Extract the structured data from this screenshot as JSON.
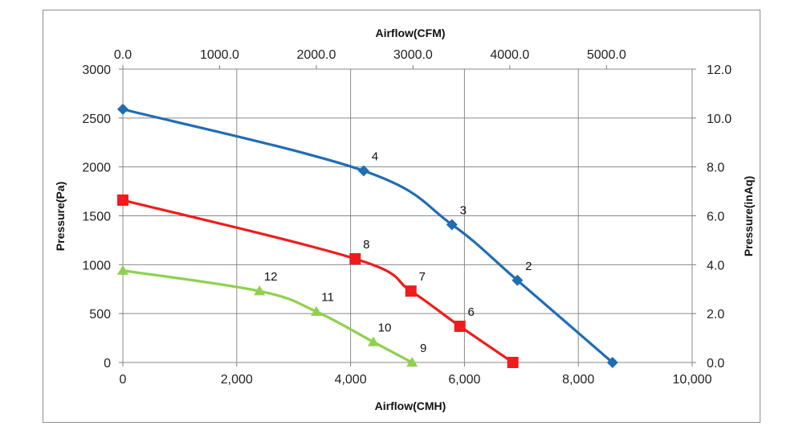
{
  "chart_data": {
    "type": "line",
    "title": "",
    "xlabel_bottom": "Airflow(CMH)",
    "xlabel_top": "Airflow(CFM)",
    "ylabel_left": "Pressure(Pa)",
    "ylabel_right": "Pressure(inAq)",
    "xlim": [
      0,
      10000
    ],
    "ylim": [
      0,
      3000
    ],
    "x2lim": [
      0,
      5885.9
    ],
    "y2lim": [
      0,
      12.0
    ],
    "grid": true,
    "x_ticks": [
      {
        "value": 0,
        "label": "0"
      },
      {
        "value": 2000,
        "label": "2,000"
      },
      {
        "value": 4000,
        "label": "4,000"
      },
      {
        "value": 6000,
        "label": "6,000"
      },
      {
        "value": 8000,
        "label": "8,000"
      },
      {
        "value": 10000,
        "label": "10,000"
      }
    ],
    "y_ticks": [
      {
        "value": 0,
        "label": "0"
      },
      {
        "value": 500,
        "label": "500"
      },
      {
        "value": 1000,
        "label": "1000"
      },
      {
        "value": 1500,
        "label": "1500"
      },
      {
        "value": 2000,
        "label": "2000"
      },
      {
        "value": 2500,
        "label": "2500"
      },
      {
        "value": 3000,
        "label": "3000"
      }
    ],
    "x2_ticks": [
      {
        "value": 0,
        "label": "0.0"
      },
      {
        "value": 1000,
        "label": "1000.0"
      },
      {
        "value": 2000,
        "label": "2000.0"
      },
      {
        "value": 3000,
        "label": "3000.0"
      },
      {
        "value": 4000,
        "label": "4000.0"
      },
      {
        "value": 5000,
        "label": "5000.0"
      }
    ],
    "y2_ticks": [
      {
        "value": 0,
        "label": "0.0"
      },
      {
        "value": 2,
        "label": "2.0"
      },
      {
        "value": 4,
        "label": "4.0"
      },
      {
        "value": 6,
        "label": "6.0"
      },
      {
        "value": 8,
        "label": "8.0"
      },
      {
        "value": 10,
        "label": "10.0"
      },
      {
        "value": 12,
        "label": "12.0"
      }
    ],
    "series": [
      {
        "color": "#1f6db3",
        "marker": "diamond",
        "points": [
          {
            "x": 0,
            "y": 2590,
            "label": ""
          },
          {
            "x": 4230,
            "y": 1960,
            "label": "4"
          },
          {
            "x": 5780,
            "y": 1410,
            "label": "3"
          },
          {
            "x": 6930,
            "y": 840,
            "label": "2"
          },
          {
            "x": 8600,
            "y": 0,
            "label": ""
          }
        ]
      },
      {
        "color": "#ee1c1c",
        "marker": "square",
        "points": [
          {
            "x": 0,
            "y": 1660,
            "label": ""
          },
          {
            "x": 4080,
            "y": 1060,
            "label": "8"
          },
          {
            "x": 5060,
            "y": 730,
            "label": "7"
          },
          {
            "x": 5920,
            "y": 370,
            "label": "6"
          },
          {
            "x": 6850,
            "y": 0,
            "label": ""
          }
        ]
      },
      {
        "color": "#8fd14f",
        "marker": "triangle",
        "points": [
          {
            "x": 0,
            "y": 940,
            "label": ""
          },
          {
            "x": 2400,
            "y": 730,
            "label": "12"
          },
          {
            "x": 3400,
            "y": 520,
            "label": "11"
          },
          {
            "x": 4400,
            "y": 210,
            "label": "10"
          },
          {
            "x": 5080,
            "y": 0,
            "label": "9"
          }
        ]
      }
    ]
  }
}
